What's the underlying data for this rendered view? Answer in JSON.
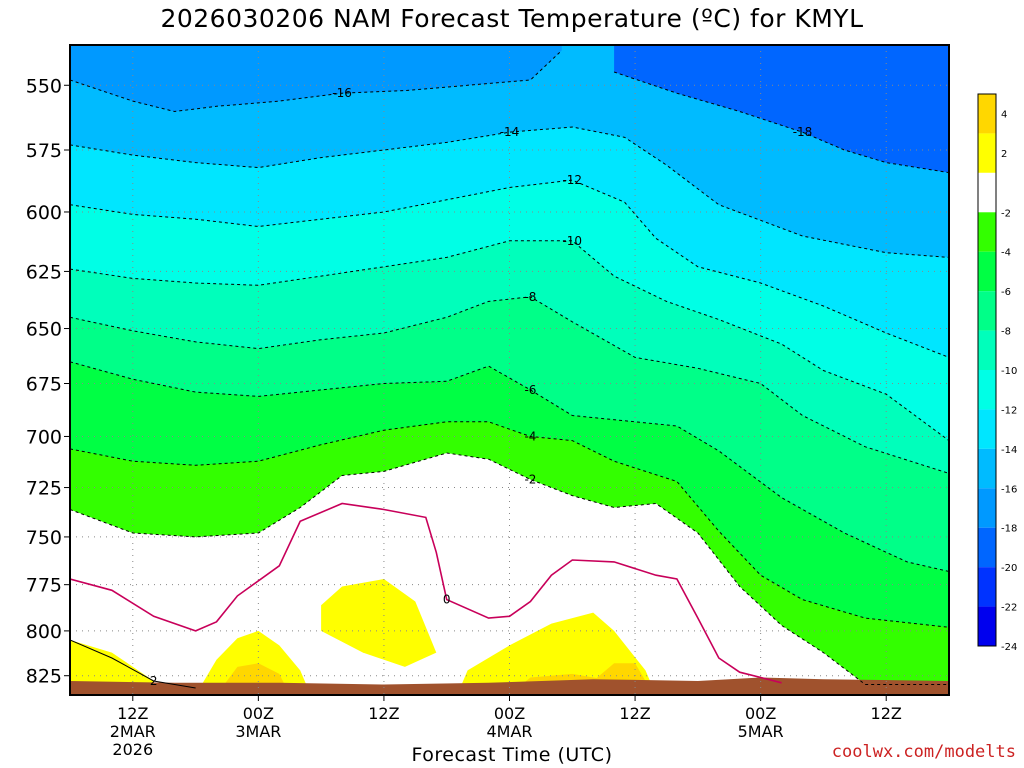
{
  "title": "2026030206 NAM Forecast Temperature (ºC) for KMYL",
  "credit": "coolwx.com/modelts",
  "chart_data": {
    "type": "heatmap",
    "title": "2026030206 NAM Forecast Temperature (ºC) for KMYL",
    "xlabel": "Forecast Time (UTC)",
    "ylabel": "",
    "y_axis": {
      "ticks": [
        550,
        575,
        600,
        625,
        650,
        675,
        700,
        725,
        750,
        775,
        800,
        825
      ],
      "range_hpa": [
        836,
        535
      ],
      "direction": "pressure decreasing upward"
    },
    "x_axis": {
      "range_hours": [
        0,
        84
      ],
      "ticks": [
        {
          "hour": 6,
          "line1": "12Z",
          "line2": "2MAR",
          "line3": "2026"
        },
        {
          "hour": 18,
          "line1": "00Z",
          "line2": "3MAR",
          "line3": ""
        },
        {
          "hour": 30,
          "line1": "12Z",
          "line2": "",
          "line3": ""
        },
        {
          "hour": 42,
          "line1": "00Z",
          "line2": "4MAR",
          "line3": ""
        },
        {
          "hour": 54,
          "line1": "12Z",
          "line2": "",
          "line3": ""
        },
        {
          "hour": 66,
          "line1": "00Z",
          "line2": "5MAR",
          "line3": ""
        },
        {
          "hour": 78,
          "line1": "12Z",
          "line2": "",
          "line3": ""
        }
      ]
    },
    "grid": true,
    "colorbar": {
      "placement": "right",
      "colors": [
        "#ffd700",
        "#ffff00",
        "#ffffff",
        "#33ff00",
        "#00ff44",
        "#00ff88",
        "#00ffbb",
        "#00ffe6",
        "#00e6ff",
        "#00bbff",
        "#0099ff",
        "#0066ff",
        "#0033ff",
        "#0000ee"
      ],
      "labels": [
        "4",
        "2",
        "-2",
        "-4",
        "-6",
        "-8",
        "-10",
        "-12",
        "-14",
        "-16",
        "-18",
        "-20",
        "-22",
        "-24"
      ]
    },
    "isotherms": [
      {
        "value": -18,
        "label": "-18",
        "points": [
          [
            52,
            545
          ],
          [
            58,
            553
          ],
          [
            64,
            560
          ],
          [
            70,
            568
          ],
          [
            74,
            575
          ],
          [
            78,
            580
          ],
          [
            84,
            584
          ]
        ]
      },
      {
        "value": -16,
        "label": "-16",
        "points": [
          [
            0,
            548
          ],
          [
            6,
            556
          ],
          [
            10,
            560
          ],
          [
            14,
            558
          ],
          [
            20,
            556
          ],
          [
            26,
            553
          ],
          [
            32,
            552
          ],
          [
            38,
            550
          ],
          [
            44,
            548
          ],
          [
            47,
            537
          ]
        ]
      },
      {
        "value": -14,
        "label": "-14",
        "points": [
          [
            0,
            573
          ],
          [
            6,
            577
          ],
          [
            12,
            580
          ],
          [
            18,
            582
          ],
          [
            24,
            578
          ],
          [
            30,
            575
          ],
          [
            36,
            572
          ],
          [
            42,
            568
          ],
          [
            48,
            566
          ],
          [
            53,
            570
          ],
          [
            57,
            581
          ],
          [
            62,
            597
          ],
          [
            70,
            610
          ],
          [
            78,
            617
          ],
          [
            84,
            619
          ]
        ]
      },
      {
        "value": -12,
        "label": "-12",
        "points": [
          [
            0,
            597
          ],
          [
            6,
            601
          ],
          [
            12,
            603
          ],
          [
            18,
            606
          ],
          [
            24,
            603
          ],
          [
            30,
            600
          ],
          [
            36,
            595
          ],
          [
            42,
            590
          ],
          [
            48,
            587
          ],
          [
            53,
            596
          ],
          [
            56,
            611
          ],
          [
            60,
            623
          ],
          [
            66,
            630
          ],
          [
            72,
            640
          ],
          [
            78,
            652
          ],
          [
            84,
            663
          ]
        ]
      },
      {
        "value": -10,
        "label": "-10",
        "points": [
          [
            0,
            624
          ],
          [
            6,
            628
          ],
          [
            12,
            630
          ],
          [
            18,
            631
          ],
          [
            24,
            627
          ],
          [
            30,
            623
          ],
          [
            36,
            619
          ],
          [
            42,
            612
          ],
          [
            48,
            612
          ],
          [
            52,
            627
          ],
          [
            57,
            638
          ],
          [
            62,
            646
          ],
          [
            68,
            657
          ],
          [
            72,
            669
          ],
          [
            78,
            680
          ],
          [
            84,
            702
          ]
        ]
      },
      {
        "value": -8,
        "label": "-8",
        "points": [
          [
            0,
            645
          ],
          [
            6,
            651
          ],
          [
            12,
            656
          ],
          [
            18,
            659
          ],
          [
            24,
            655
          ],
          [
            30,
            652
          ],
          [
            36,
            645
          ],
          [
            40,
            638
          ],
          [
            44,
            636
          ],
          [
            48,
            647
          ],
          [
            54,
            663
          ],
          [
            60,
            668
          ],
          [
            66,
            675
          ],
          [
            70,
            690
          ],
          [
            76,
            705
          ],
          [
            84,
            718
          ]
        ]
      },
      {
        "value": -6,
        "label": "-6",
        "points": [
          [
            0,
            665
          ],
          [
            6,
            673
          ],
          [
            12,
            679
          ],
          [
            18,
            681
          ],
          [
            24,
            678
          ],
          [
            30,
            675
          ],
          [
            36,
            674
          ],
          [
            40,
            667
          ],
          [
            44,
            678
          ],
          [
            48,
            690
          ],
          [
            54,
            693
          ],
          [
            58,
            695
          ],
          [
            62,
            707
          ],
          [
            68,
            730
          ],
          [
            74,
            748
          ],
          [
            80,
            763
          ],
          [
            84,
            768
          ]
        ]
      },
      {
        "value": -4,
        "label": "-4",
        "points": [
          [
            0,
            706
          ],
          [
            6,
            712
          ],
          [
            12,
            714
          ],
          [
            18,
            712
          ],
          [
            24,
            704
          ],
          [
            30,
            697
          ],
          [
            36,
            693
          ],
          [
            40,
            693
          ],
          [
            44,
            700
          ],
          [
            48,
            702
          ],
          [
            52,
            712
          ],
          [
            58,
            722
          ],
          [
            62,
            747
          ],
          [
            66,
            770
          ],
          [
            70,
            783
          ],
          [
            76,
            793
          ],
          [
            84,
            798
          ]
        ]
      },
      {
        "value": -2,
        "label": "-2",
        "points": [
          [
            0,
            736
          ],
          [
            6,
            748
          ],
          [
            12,
            750
          ],
          [
            18,
            748
          ],
          [
            22,
            735
          ],
          [
            26,
            719
          ],
          [
            30,
            717
          ],
          [
            36,
            708
          ],
          [
            40,
            711
          ],
          [
            44,
            721
          ],
          [
            48,
            729
          ],
          [
            52,
            735
          ],
          [
            56,
            733
          ],
          [
            60,
            748
          ],
          [
            64,
            776
          ],
          [
            68,
            797
          ],
          [
            72,
            812
          ],
          [
            76,
            830
          ],
          [
            84,
            830
          ]
        ]
      },
      {
        "value": 0,
        "label": "0",
        "points": [
          [
            0,
            772
          ],
          [
            4,
            778
          ],
          [
            8,
            792
          ],
          [
            12,
            800
          ],
          [
            14,
            795
          ],
          [
            16,
            781
          ],
          [
            20,
            765
          ],
          [
            22,
            742
          ],
          [
            26,
            733
          ],
          [
            30,
            736
          ],
          [
            34,
            740
          ],
          [
            35,
            758
          ],
          [
            36,
            783
          ],
          [
            40,
            793
          ],
          [
            42,
            792
          ],
          [
            44,
            784
          ],
          [
            46,
            770
          ],
          [
            48,
            762
          ],
          [
            52,
            763
          ],
          [
            56,
            770
          ],
          [
            58,
            772
          ],
          [
            60,
            793
          ],
          [
            62,
            815
          ],
          [
            64,
            823
          ],
          [
            68,
            829
          ]
        ]
      },
      {
        "value": 2,
        "label": "2",
        "points": [
          [
            0,
            805
          ],
          [
            4,
            815
          ],
          [
            8,
            828
          ],
          [
            12,
            832
          ]
        ]
      }
    ]
  }
}
